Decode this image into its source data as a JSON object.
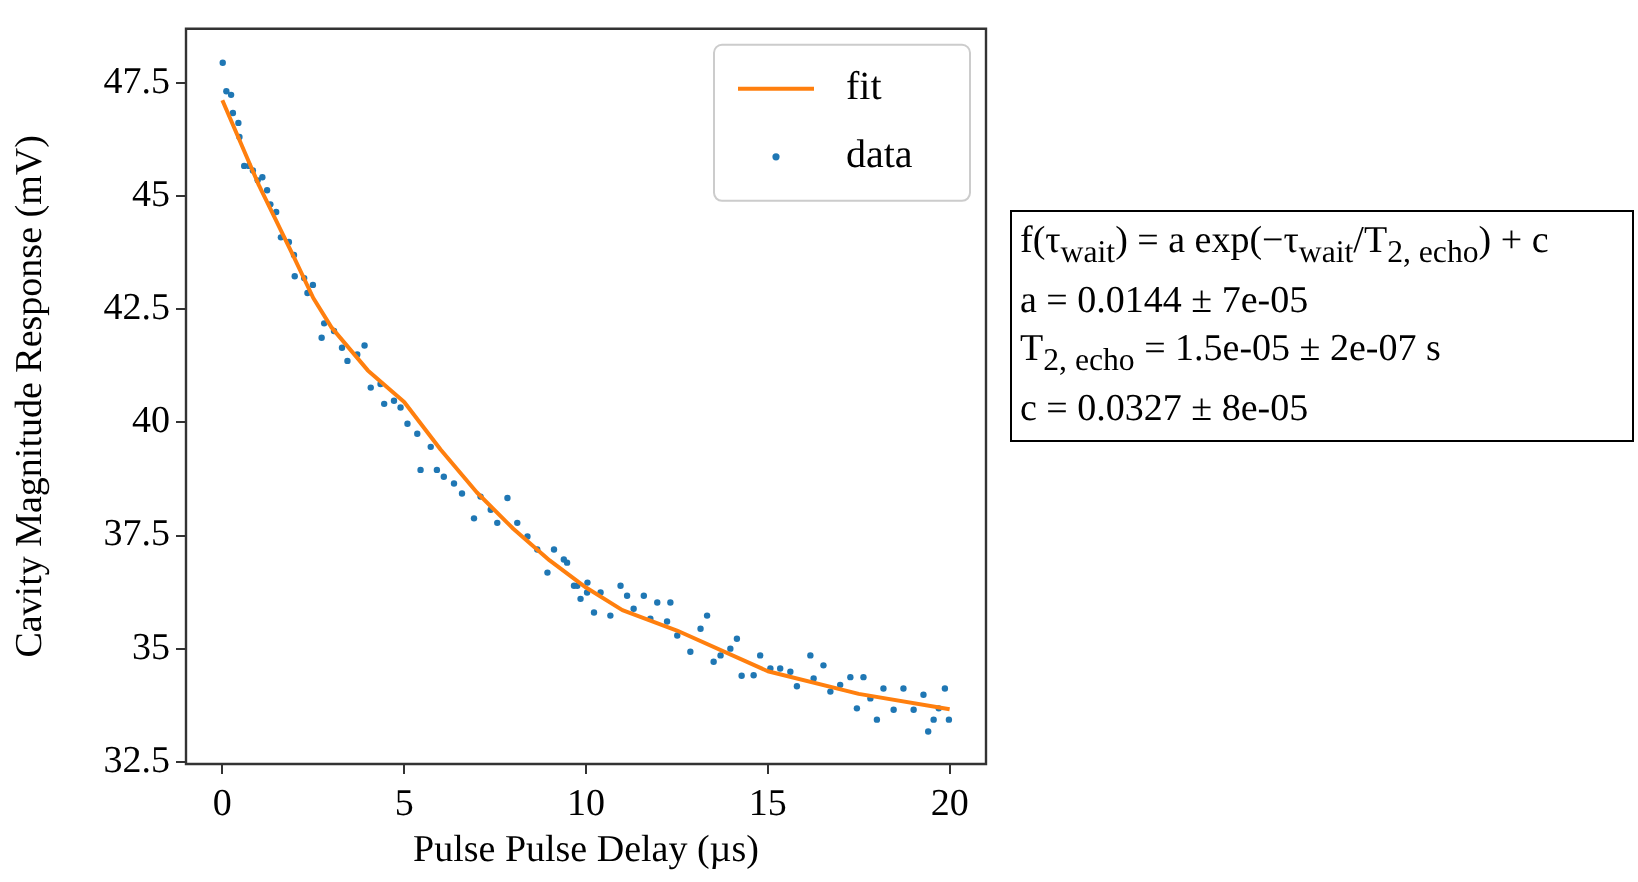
{
  "chart_data": {
    "type": "scatter",
    "xlabel": "Pulse Pulse Delay (µs)",
    "ylabel": "Cavity Magnitude Response (mV)",
    "xlim": [
      -1,
      21
    ],
    "ylim": [
      32.45,
      48.7
    ],
    "xticks": [
      0,
      5,
      10,
      15,
      20
    ],
    "yticks": [
      32.5,
      35,
      37.5,
      40,
      42.5,
      45,
      47.5
    ],
    "grid": false,
    "legend": "top right",
    "annotations": [
      "f(τ$_{wait}$) = a exp(−τ$_{wait}$/T$_{2, echo}$) + c",
      "a = 0.0144 ± 7e-05",
      "T$_{2, echo}$ = 1.5e-05 ± 2e-07 s",
      "c = 0.0327 ± 8e-05"
    ],
    "series": [
      {
        "name": "fit",
        "type": "line",
        "color": "#ff7f0e",
        "marker": "none",
        "line_style": "solid",
        "x": [
          0,
          1,
          2,
          2.5,
          3,
          4,
          5,
          6,
          7,
          8,
          9,
          10,
          11,
          12.5,
          15,
          17.5,
          20
        ],
        "values": [
          47.12,
          45.25,
          43.6,
          42.75,
          42.1,
          41.15,
          40.45,
          39.4,
          38.45,
          37.65,
          36.95,
          36.35,
          35.85,
          35.4,
          34.5,
          34.0,
          33.66
        ]
      },
      {
        "name": "data",
        "type": "scatter",
        "color": "#1f77b4",
        "marker": "circle",
        "x": [
          0.01,
          0.11,
          0.24,
          0.29,
          0.44,
          0.47,
          0.6,
          0.73,
          0.84,
          0.97,
          1.1,
          1.23,
          1.32,
          1.48,
          1.61,
          1.83,
          1.97,
          1.99,
          2.25,
          2.34,
          2.49,
          2.73,
          2.8,
          3.07,
          3.29,
          3.44,
          3.71,
          3.91,
          4.08,
          4.35,
          4.45,
          4.72,
          4.9,
          5.09,
          5.36,
          5.45,
          5.73,
          5.9,
          6.09,
          6.37,
          6.59,
          6.92,
          7.1,
          7.38,
          7.56,
          7.84,
          8.11,
          8.39,
          8.66,
          8.94,
          9.12,
          9.39,
          9.67,
          9.85,
          10.04,
          10.22,
          9.48,
          9.76,
          10.03,
          10.4,
          10.67,
          10.95,
          11.13,
          11.31,
          11.59,
          11.77,
          11.96,
          12.23,
          12.32,
          12.51,
          12.87,
          13.15,
          13.33,
          13.51,
          13.7,
          13.97,
          14.15,
          14.28,
          14.61,
          14.79,
          15.07,
          15.34,
          15.62,
          15.8,
          16.17,
          16.26,
          16.53,
          16.72,
          16.99,
          17.27,
          17.45,
          17.63,
          17.82,
          18.0,
          18.18,
          18.46,
          18.73,
          19.01,
          19.28,
          19.41,
          19.56,
          19.7,
          19.87,
          19.98
        ],
        "values": [
          47.95,
          47.32,
          47.24,
          46.84,
          46.62,
          46.31,
          45.67,
          45.67,
          45.57,
          45.35,
          45.42,
          45.13,
          44.82,
          44.65,
          44.09,
          43.99,
          43.7,
          43.23,
          43.19,
          42.86,
          43.04,
          41.87,
          42.19,
          42.02,
          41.65,
          41.36,
          41.5,
          41.7,
          40.77,
          40.85,
          40.41,
          40.48,
          40.33,
          39.97,
          39.75,
          38.95,
          39.46,
          38.95,
          38.8,
          38.65,
          38.43,
          37.88,
          38.36,
          38.07,
          37.78,
          38.33,
          37.78,
          37.48,
          37.19,
          36.68,
          37.19,
          36.97,
          36.39,
          36.1,
          36.46,
          35.8,
          36.9,
          36.39,
          36.24,
          36.24,
          35.73,
          36.39,
          36.17,
          35.88,
          36.17,
          35.66,
          36.02,
          35.6,
          36.02,
          35.29,
          34.93,
          35.44,
          35.73,
          34.71,
          34.85,
          35.0,
          35.22,
          34.4,
          34.41,
          34.85,
          34.56,
          34.56,
          34.49,
          34.17,
          34.85,
          34.34,
          34.63,
          34.05,
          34.2,
          34.37,
          33.68,
          34.37,
          33.9,
          33.43,
          34.12,
          33.65,
          34.12,
          33.65,
          33.98,
          33.17,
          33.43,
          33.68,
          34.12,
          33.43
        ]
      }
    ]
  }
}
